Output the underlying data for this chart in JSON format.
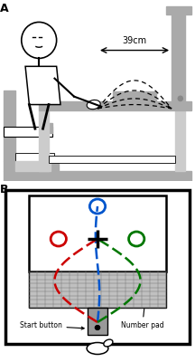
{
  "panel_A_label": "A",
  "panel_B_label": "B",
  "distance_text": "39cm",
  "start_button_text": "Start button",
  "number_pad_text": "Number pad",
  "bg_color": "#ffffff",
  "gray1": "#aaaaaa",
  "gray2": "#bbbbbb",
  "gray3": "#cccccc",
  "gray4": "#888888",
  "gray5": "#999999",
  "black": "#000000",
  "blue": "#0055cc",
  "red": "#cc0000",
  "green": "#007700"
}
